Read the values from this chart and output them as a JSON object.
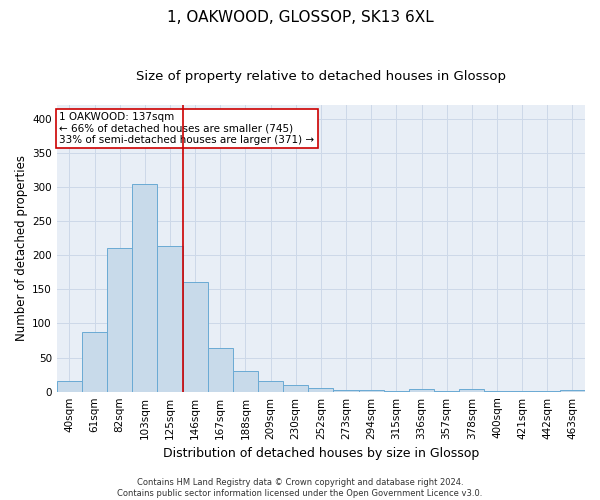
{
  "title": "1, OAKWOOD, GLOSSOP, SK13 6XL",
  "subtitle": "Size of property relative to detached houses in Glossop",
  "xlabel": "Distribution of detached houses by size in Glossop",
  "ylabel": "Number of detached properties",
  "footer_line1": "Contains HM Land Registry data © Crown copyright and database right 2024.",
  "footer_line2": "Contains public sector information licensed under the Open Government Licence v3.0.",
  "bar_labels": [
    "40sqm",
    "61sqm",
    "82sqm",
    "103sqm",
    "125sqm",
    "146sqm",
    "167sqm",
    "188sqm",
    "209sqm",
    "230sqm",
    "252sqm",
    "273sqm",
    "294sqm",
    "315sqm",
    "336sqm",
    "357sqm",
    "378sqm",
    "400sqm",
    "421sqm",
    "442sqm",
    "463sqm"
  ],
  "bar_values": [
    15,
    88,
    210,
    304,
    213,
    160,
    64,
    30,
    16,
    10,
    6,
    3,
    2,
    1,
    4,
    1,
    4,
    1,
    1,
    1,
    3
  ],
  "bar_color": "#c8daea",
  "bar_edgecolor": "#6aaad4",
  "grid_color": "#cdd8e8",
  "background_color": "#e8eef6",
  "annotation_line1": "1 OAKWOOD: 137sqm",
  "annotation_line2": "← 66% of detached houses are smaller (745)",
  "annotation_line3": "33% of semi-detached houses are larger (371) →",
  "annotation_box_color": "#ffffff",
  "annotation_box_edgecolor": "#cc0000",
  "vline_color": "#cc0000",
  "vline_pos": 4.5,
  "ylim": [
    0,
    420
  ],
  "yticks": [
    0,
    50,
    100,
    150,
    200,
    250,
    300,
    350,
    400
  ],
  "title_fontsize": 11,
  "subtitle_fontsize": 9.5,
  "tick_fontsize": 7.5,
  "ylabel_fontsize": 8.5,
  "xlabel_fontsize": 9,
  "footer_fontsize": 6,
  "annotation_fontsize": 7.5
}
